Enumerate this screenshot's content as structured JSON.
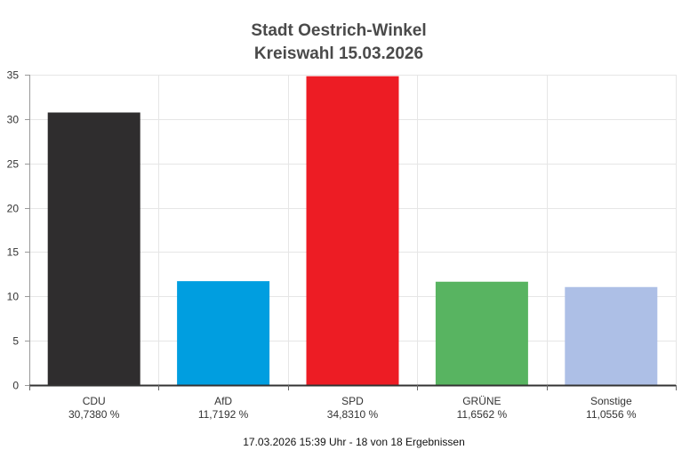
{
  "chart_data": {
    "type": "bar",
    "title_lines": [
      "Stadt Oestrich-Winkel",
      "Kreiswahl 15.03.2026"
    ],
    "categories": [
      "CDU",
      "AfD",
      "SPD",
      "GRÜNE",
      "Sonstige"
    ],
    "values": [
      30.738,
      11.7192,
      34.831,
      11.6562,
      11.0556
    ],
    "value_labels": [
      "30,7380 %",
      "11,7192 %",
      "34,8310 %",
      "11,6562 %",
      "11,0556 %"
    ],
    "colors": [
      "#2f2d2e",
      "#009ee0",
      "#ed1c24",
      "#58b461",
      "#adbfe6"
    ],
    "ylim": [
      0,
      35
    ],
    "yticks": [
      0,
      5,
      10,
      15,
      20,
      25,
      30,
      35
    ],
    "grid": true,
    "footer": "17.03.2026 15:39 Uhr - 18 von 18 Ergebnissen"
  }
}
